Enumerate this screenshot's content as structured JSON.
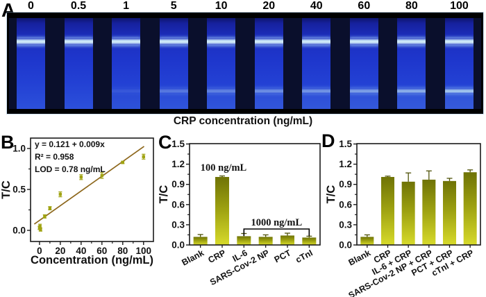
{
  "panels": {
    "a": {
      "letter": "A",
      "caption": "CRP concentration (ng/mL)",
      "lanes": [
        {
          "label": "0",
          "test_line": 0
        },
        {
          "label": "0.5",
          "test_line": 0
        },
        {
          "label": "1",
          "test_line": 0.12
        },
        {
          "label": "5",
          "test_line": 0.35
        },
        {
          "label": "10",
          "test_line": 0.42
        },
        {
          "label": "20",
          "test_line": 0.5
        },
        {
          "label": "40",
          "test_line": 0.55
        },
        {
          "label": "60",
          "test_line": 0.62
        },
        {
          "label": "80",
          "test_line": 0.72
        },
        {
          "label": "100",
          "test_line": 0.88
        }
      ]
    },
    "b": {
      "letter": "B"
    },
    "c": {
      "letter": "C"
    },
    "d": {
      "letter": "D"
    }
  },
  "colors": {
    "bar_top": "#6f7306",
    "bar_mid": "#9b9f10",
    "bar_bottom": "#d7da2b",
    "error_bar": "#4f5208",
    "scatter_point": "#a0a312",
    "fit_line": "#8d671c",
    "axis": "#1a1a1a"
  },
  "chart_data": [
    {
      "id": "chartB",
      "panel": "B",
      "type": "scatter",
      "x": [
        0,
        0.5,
        1,
        5,
        10,
        20,
        40,
        60,
        80,
        100
      ],
      "y": [
        0.03,
        0.05,
        0.01,
        0.17,
        0.27,
        0.44,
        0.65,
        0.67,
        0.83,
        0.9
      ],
      "yerr": [
        0.02,
        0.025,
        0.02,
        0.02,
        0.02,
        0.03,
        0.03,
        0.035,
        0.015,
        0.03
      ],
      "fit": {
        "equation": "y = 0.121 + 0.009x",
        "intercept": 0.121,
        "slope": 0.009,
        "x_start": -5,
        "x_end": 100.5
      },
      "annotations": [
        "y = 0.121 + 0.009x",
        "R² = 0.958",
        "LOD = 0.78 ng/mL"
      ],
      "xlabel": "Concentration (ng/mL)",
      "ylabel": "T/C",
      "xticks": [
        0,
        20,
        40,
        60,
        80,
        100
      ],
      "xminor": [
        10,
        30,
        50,
        70,
        90
      ],
      "yticks": [
        0.0,
        0.5,
        1.0
      ],
      "yminor": [
        0.25,
        0.75
      ],
      "xlim": [
        -8.6,
        109.5
      ],
      "ylim": [
        -0.136,
        1.127
      ]
    },
    {
      "id": "chartC",
      "panel": "C",
      "type": "bar",
      "categories": [
        "Blank",
        "CRP",
        "IL-6",
        "SARS-Cov-2 NP",
        "PCT",
        "cTnI"
      ],
      "values": [
        0.12,
        1.01,
        0.13,
        0.12,
        0.14,
        0.11
      ],
      "errors": [
        0.035,
        0.015,
        0.04,
        0.03,
        0.035,
        0.02
      ],
      "ylabel": "T/C",
      "yticks": [
        0,
        0.3,
        0.6,
        0.9,
        1.2,
        1.5
      ],
      "yminor": [
        0.15,
        0.45,
        0.75,
        1.05,
        1.35
      ],
      "ylim": [
        0,
        1.505
      ],
      "annotation": {
        "text": "100 ng/mL",
        "bar_index": 1
      },
      "bracket": {
        "text": "1000 ng/mL",
        "from_index": 2,
        "to_index": 5
      }
    },
    {
      "id": "chartD",
      "panel": "D",
      "type": "bar",
      "categories": [
        "Blank",
        "CRP",
        "IL-6 + CRP",
        "SARS-Cov-2 NP + CRP",
        "PCT + CRP",
        "cTnI + CRP"
      ],
      "values": [
        0.12,
        1.01,
        0.94,
        0.97,
        0.95,
        1.08
      ],
      "errors": [
        0.03,
        0.012,
        0.13,
        0.13,
        0.04,
        0.035
      ],
      "ylabel": "T/C",
      "yticks": [
        0,
        0.3,
        0.6,
        0.9,
        1.2,
        1.5
      ],
      "yminor": [
        0.15,
        0.45,
        0.75,
        1.05,
        1.35
      ],
      "ylim": [
        0,
        1.505
      ]
    }
  ]
}
